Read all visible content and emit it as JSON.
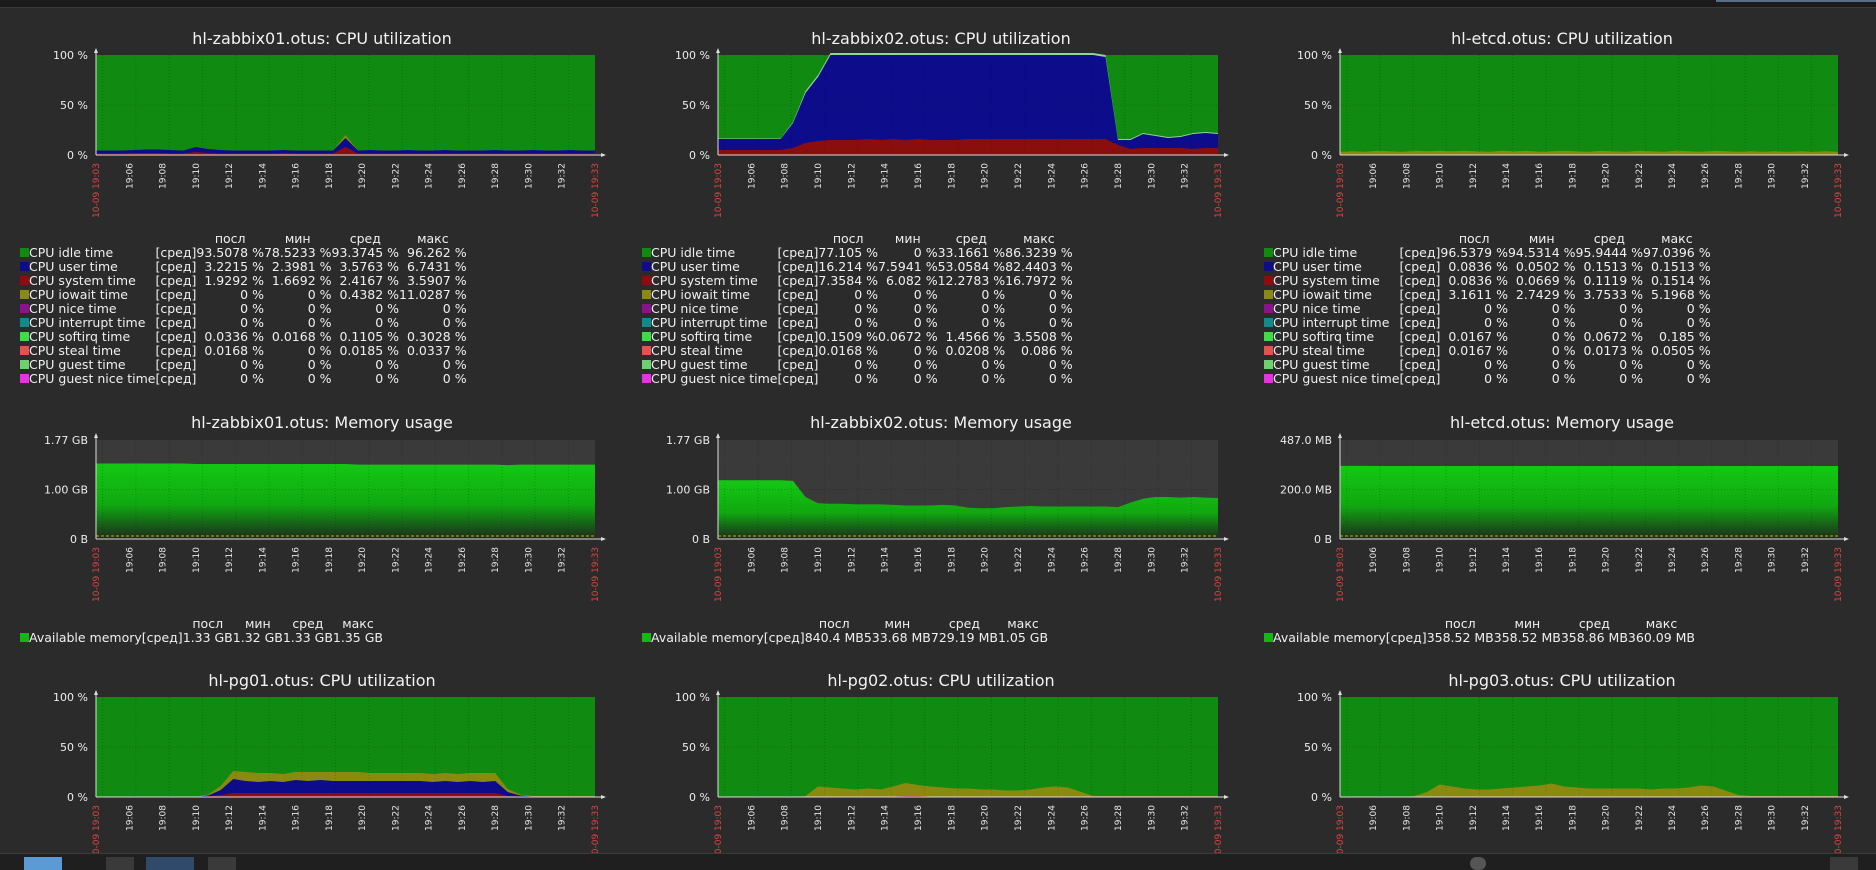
{
  "time_axis": {
    "start": "10-09 19:03",
    "end": "10-09 19:33",
    "ticks": [
      "19:06",
      "19:08",
      "19:10",
      "19:12",
      "19:14",
      "19:16",
      "19:18",
      "19:20",
      "19:22",
      "19:24",
      "19:26",
      "19:28",
      "19:30",
      "19:32"
    ]
  },
  "legend_headers": {
    "last": "посл",
    "min": "мин",
    "avg": "сред",
    "max": "макс"
  },
  "func_label": "[сред]",
  "cpu_series": [
    {
      "name": "CPU idle time",
      "color": "#118a11"
    },
    {
      "name": "CPU user time",
      "color": "#0d0d8c"
    },
    {
      "name": "CPU system time",
      "color": "#8b0e0e"
    },
    {
      "name": "CPU iowait time",
      "color": "#8a8a10"
    },
    {
      "name": "CPU nice time",
      "color": "#8a128a"
    },
    {
      "name": "CPU interrupt time",
      "color": "#128a8a"
    },
    {
      "name": "CPU softirq time",
      "color": "#45d945"
    },
    {
      "name": "CPU steal time",
      "color": "#e84f4f"
    },
    {
      "name": "CPU guest time",
      "color": "#6fd06f"
    },
    {
      "name": "CPU guest nice time",
      "color": "#e832e0"
    }
  ],
  "mem_series": {
    "name": "Available memory",
    "color": "#11b911"
  },
  "widgets": [
    {
      "title": "hl-zabbix01.otus: CPU utilization",
      "chart_data": {
        "type": "area",
        "y_ticks": [
          "100 %",
          "50 %",
          "0 %"
        ],
        "ylim": [
          0,
          100
        ],
        "series": {
          "system": [
            1.5,
            1.5,
            1.5,
            2,
            2,
            2,
            1.5,
            1.5,
            3,
            2,
            1.5,
            1.5,
            1.5,
            1.5,
            1.5,
            2,
            1.5,
            1.5,
            1.5,
            1.5,
            8,
            1.5,
            1.5,
            1.5,
            1.5,
            1.5,
            1.5,
            1.5,
            1.5,
            1.5,
            1.5,
            1.5,
            1.5,
            1.5,
            1.5,
            1.5,
            1.5,
            1.5,
            1.5,
            1.5,
            1.5
          ],
          "user": [
            3,
            3,
            3,
            3,
            3.5,
            3.5,
            3.5,
            3,
            5,
            4,
            3.5,
            3,
            3,
            3,
            3,
            3,
            3,
            3,
            3,
            3,
            9,
            3,
            3.5,
            3,
            3,
            3.5,
            3,
            3,
            3.5,
            3,
            3,
            3,
            3.5,
            3,
            3,
            3.5,
            3,
            3,
            3.5,
            3,
            3
          ],
          "iowait": [
            0,
            0,
            0,
            0,
            0,
            0,
            0,
            0,
            0,
            0,
            0,
            0,
            0,
            0,
            0,
            0,
            0,
            0,
            0,
            0,
            3,
            0,
            0,
            0,
            0,
            0,
            0,
            0,
            0,
            0,
            0,
            0,
            0,
            0,
            0,
            0,
            0,
            0,
            0,
            0,
            0
          ]
        }
      },
      "legend": [
        [
          "93.5078 %",
          "78.5233 %",
          "93.3745 %",
          "96.262 %"
        ],
        [
          "3.2215 %",
          "2.3981 %",
          "3.5763 %",
          "6.7431 %"
        ],
        [
          "1.9292 %",
          "1.6692 %",
          "2.4167 %",
          "3.5907 %"
        ],
        [
          "0 %",
          "0 %",
          "0.4382 %",
          "11.0287 %"
        ],
        [
          "0 %",
          "0 %",
          "0 %",
          "0 %"
        ],
        [
          "0 %",
          "0 %",
          "0 %",
          "0 %"
        ],
        [
          "0.0336 %",
          "0.0168 %",
          "0.1105 %",
          "0.3028 %"
        ],
        [
          "0.0168 %",
          "0 %",
          "0.0185 %",
          "0.0337 %"
        ],
        [
          "0 %",
          "0 %",
          "0 %",
          "0 %"
        ],
        [
          "0 %",
          "0 %",
          "0 %",
          "0 %"
        ]
      ]
    },
    {
      "title": "hl-zabbix02.otus: CPU utilization",
      "chart_data": {
        "type": "area",
        "y_ticks": [
          "100 %",
          "50 %",
          "0 %"
        ],
        "ylim": [
          0,
          100
        ],
        "series": {
          "system": [
            5,
            5,
            5,
            5,
            5,
            5,
            7,
            12,
            14,
            15,
            15,
            15,
            16,
            15,
            16,
            15,
            16,
            15,
            15,
            15,
            16,
            16,
            16,
            16,
            16,
            16,
            16,
            16,
            16,
            16,
            16,
            16,
            10,
            6,
            7,
            7,
            7,
            7,
            6,
            7,
            7
          ],
          "user": [
            11,
            11,
            11,
            11,
            11,
            11,
            25,
            50,
            64,
            85,
            85,
            85,
            84,
            85,
            84,
            85,
            84,
            85,
            85,
            85,
            84,
            84,
            84,
            84,
            84,
            84,
            84,
            84,
            84,
            84,
            84,
            82,
            5,
            9,
            14,
            12,
            10,
            11,
            15,
            15,
            14
          ],
          "softirq": [
            0.5,
            0.5,
            0.5,
            0.5,
            0.5,
            0.5,
            1,
            2,
            2,
            2,
            2,
            2,
            2,
            2,
            2,
            2,
            2,
            2,
            2,
            2,
            2,
            2,
            2,
            2,
            2,
            2,
            2,
            2,
            2,
            2,
            2,
            2,
            1,
            1,
            1,
            1,
            1,
            1,
            1,
            1,
            1
          ]
        }
      },
      "legend": [
        [
          "77.105 %",
          "0 %",
          "33.1661 %",
          "86.3239 %"
        ],
        [
          "16.214 %",
          "7.5941 %",
          "53.0584 %",
          "82.4403 %"
        ],
        [
          "7.3584 %",
          "6.082 %",
          "12.2783 %",
          "16.7972 %"
        ],
        [
          "0 %",
          "0 %",
          "0 %",
          "0 %"
        ],
        [
          "0 %",
          "0 %",
          "0 %",
          "0 %"
        ],
        [
          "0 %",
          "0 %",
          "0 %",
          "0 %"
        ],
        [
          "0.1509 %",
          "0.0672 %",
          "1.4566 %",
          "3.5508 %"
        ],
        [
          "0.0168 %",
          "0 %",
          "0.0208 %",
          "0.086 %"
        ],
        [
          "0 %",
          "0 %",
          "0 %",
          "0 %"
        ],
        [
          "0 %",
          "0 %",
          "0 %",
          "0 %"
        ]
      ]
    },
    {
      "title": "hl-etcd.otus: CPU utilization",
      "chart_data": {
        "type": "area",
        "y_ticks": [
          "100 %",
          "50 %",
          "0 %"
        ],
        "ylim": [
          0,
          100
        ],
        "series": {
          "iowait": [
            3,
            3.5,
            3,
            4,
            3.5,
            3,
            4,
            3.5,
            4,
            3.5,
            4,
            3.5,
            3,
            4,
            3.5,
            4,
            3,
            3.5,
            4,
            3.5,
            3,
            4,
            3.5,
            3,
            4,
            3.5,
            3,
            4,
            3.5,
            3,
            4,
            3.5,
            3,
            3.5,
            3,
            3.5,
            3,
            3.5,
            3,
            3.5,
            3
          ],
          "system": [
            0.2,
            0.2,
            0.2,
            0.2,
            0.2,
            0.2,
            0.2,
            0.2,
            0.2,
            0.2,
            0.2,
            0.2,
            0.2,
            0.2,
            0.2,
            0.2,
            0.2,
            0.2,
            0.2,
            0.2,
            0.2,
            0.2,
            0.2,
            0.2,
            0.2,
            0.2,
            0.2,
            0.2,
            0.2,
            0.2,
            0.2,
            0.2,
            0.2,
            0.2,
            0.2,
            0.2,
            0.2,
            0.2,
            0.2,
            0.2,
            0.2
          ]
        }
      },
      "legend": [
        [
          "96.5379 %",
          "94.5314 %",
          "95.9444 %",
          "97.0396 %"
        ],
        [
          "0.0836 %",
          "0.0502 %",
          "0.1513 %",
          "0.1513 %"
        ],
        [
          "0.0836 %",
          "0.0669 %",
          "0.1119 %",
          "0.1514 %"
        ],
        [
          "3.1611 %",
          "2.7429 %",
          "3.7533 %",
          "5.1968 %"
        ],
        [
          "0 %",
          "0 %",
          "0 %",
          "0 %"
        ],
        [
          "0 %",
          "0 %",
          "0 %",
          "0 %"
        ],
        [
          "0.0167 %",
          "0 %",
          "0.0672 %",
          "0.185 %"
        ],
        [
          "0.0167 %",
          "0 %",
          "0.0173 %",
          "0.0505 %"
        ],
        [
          "0 %",
          "0 %",
          "0 %",
          "0 %"
        ],
        [
          "0 %",
          "0 %",
          "0 %",
          "0 %"
        ]
      ]
    },
    {
      "title": "hl-zabbix01.otus: Memory usage",
      "chart_data": {
        "type": "area",
        "unit": "GB",
        "y_ticks": [
          "1.77 GB",
          "1.00 GB",
          "0 B"
        ],
        "ylim": [
          0,
          1.77
        ],
        "values": [
          1.35,
          1.35,
          1.35,
          1.35,
          1.35,
          1.35,
          1.35,
          1.35,
          1.34,
          1.34,
          1.34,
          1.34,
          1.34,
          1.34,
          1.34,
          1.34,
          1.34,
          1.34,
          1.34,
          1.34,
          1.34,
          1.33,
          1.33,
          1.33,
          1.33,
          1.33,
          1.33,
          1.33,
          1.33,
          1.33,
          1.33,
          1.33,
          1.33,
          1.32,
          1.33,
          1.33,
          1.33,
          1.33,
          1.33,
          1.33,
          1.33
        ]
      },
      "legend": [
        "1.33 GB",
        "1.32 GB",
        "1.33 GB",
        "1.35 GB"
      ]
    },
    {
      "title": "hl-zabbix02.otus: Memory usage",
      "chart_data": {
        "type": "area",
        "unit": "GB",
        "y_ticks": [
          "1.77 GB",
          "1.00 GB",
          "0 B"
        ],
        "ylim": [
          0,
          1.77
        ],
        "values": [
          1.05,
          1.05,
          1.05,
          1.05,
          1.05,
          1.05,
          1.04,
          0.75,
          0.64,
          0.63,
          0.63,
          0.62,
          0.62,
          0.62,
          0.61,
          0.6,
          0.6,
          0.6,
          0.61,
          0.6,
          0.56,
          0.55,
          0.55,
          0.57,
          0.58,
          0.59,
          0.58,
          0.58,
          0.58,
          0.58,
          0.58,
          0.58,
          0.57,
          0.65,
          0.72,
          0.75,
          0.75,
          0.74,
          0.75,
          0.74,
          0.73
        ]
      },
      "legend": [
        "840.4 MB",
        "533.68 MB",
        "729.19 MB",
        "1.05 GB"
      ]
    },
    {
      "title": "hl-etcd.otus: Memory usage",
      "chart_data": {
        "type": "area",
        "unit": "MB",
        "y_ticks": [
          "487.0 MB",
          "200.0 MB",
          "0 B"
        ],
        "ylim": [
          0,
          487
        ],
        "values": [
          360,
          360,
          360,
          359,
          359,
          359,
          359,
          359,
          359,
          359,
          359,
          359,
          359,
          359,
          359,
          359,
          359,
          359,
          359,
          359,
          359,
          359,
          359,
          359,
          359,
          359,
          359,
          359,
          359,
          359,
          359,
          359,
          359,
          359,
          359,
          359,
          359,
          359,
          359,
          359,
          359
        ]
      },
      "legend": [
        "358.52 MB",
        "358.52 MB",
        "358.86 MB",
        "360.09 MB"
      ]
    },
    {
      "title": "hl-pg01.otus: CPU utilization",
      "chart_data": {
        "type": "area",
        "y_ticks": [
          "100 %",
          "50 %",
          "0 %"
        ],
        "ylim": [
          0,
          100
        ],
        "series": {
          "iowait": [
            0,
            0,
            0,
            0,
            0,
            0,
            0,
            0,
            0,
            1,
            4,
            8,
            9,
            9,
            8,
            8,
            8,
            9,
            8,
            9,
            9,
            9,
            8,
            8,
            8,
            8,
            8,
            8,
            8,
            8,
            8,
            9,
            8,
            3,
            1,
            0.5,
            0.5,
            0.5,
            0.5,
            0.5,
            0.5
          ],
          "system": [
            0,
            0,
            0,
            0,
            0,
            0,
            0,
            0,
            0,
            0.5,
            2,
            4,
            4,
            4,
            4,
            4,
            4,
            4,
            4,
            4,
            4,
            4,
            4,
            4,
            4,
            4,
            4,
            4,
            4,
            4,
            4,
            4,
            4,
            1,
            0.5,
            0,
            0,
            0,
            0,
            0,
            0
          ],
          "user": [
            0,
            0,
            0,
            0,
            0,
            0,
            0,
            0,
            0,
            1,
            5,
            14,
            12,
            11,
            12,
            11,
            13,
            12,
            13,
            12,
            12,
            12,
            12,
            12,
            12,
            12,
            12,
            11,
            12,
            11,
            12,
            11,
            12,
            4,
            1,
            0.5,
            0.5,
            0.5,
            0.5,
            0.5,
            0.5
          ]
        }
      },
      "legend": []
    },
    {
      "title": "hl-pg02.otus: CPU utilization",
      "chart_data": {
        "type": "area",
        "y_ticks": [
          "100 %",
          "50 %",
          "0 %"
        ],
        "ylim": [
          0,
          100
        ],
        "series": {
          "iowait": [
            0,
            0,
            0,
            0,
            0,
            0,
            0,
            1,
            10,
            9,
            8,
            7,
            8,
            7,
            10,
            13,
            11,
            10,
            9,
            8,
            8,
            7,
            7,
            6,
            6,
            7,
            9,
            10,
            9,
            5,
            1,
            1,
            1,
            1,
            1,
            1,
            1,
            1,
            1,
            1,
            1
          ],
          "system": [
            0,
            0,
            0,
            0,
            0,
            0,
            0,
            0,
            0.5,
            0.5,
            0.5,
            0.5,
            0.5,
            0.5,
            0.5,
            1,
            1,
            0.5,
            0.5,
            0.5,
            0.5,
            0.5,
            0.5,
            0.5,
            0.5,
            0.5,
            0.5,
            0.5,
            0.5,
            0.3,
            0,
            0,
            0,
            0,
            0,
            0,
            0,
            0,
            0,
            0,
            0
          ]
        }
      },
      "legend": []
    },
    {
      "title": "hl-pg03.otus: CPU utilization",
      "chart_data": {
        "type": "area",
        "y_ticks": [
          "100 %",
          "50 %",
          "0 %"
        ],
        "ylim": [
          0,
          100
        ],
        "series": {
          "iowait": [
            0,
            0,
            0,
            0,
            0,
            0,
            1,
            5,
            12,
            10,
            8,
            7,
            7,
            8,
            9,
            10,
            11,
            13,
            10,
            9,
            8,
            8,
            8,
            8,
            8,
            7,
            8,
            8,
            9,
            11,
            10,
            6,
            2,
            1,
            1,
            1,
            1,
            1,
            1,
            1,
            1
          ],
          "system": [
            0,
            0,
            0,
            0,
            0,
            0,
            0,
            0,
            0.5,
            0.5,
            0.5,
            0.5,
            0.5,
            0.5,
            0.5,
            0.5,
            0.5,
            0.5,
            0.5,
            0.5,
            0.5,
            0.5,
            0.5,
            0.5,
            0.5,
            0.5,
            0.5,
            0.5,
            0.5,
            0.5,
            0.5,
            0.3,
            0,
            0,
            0,
            0,
            0,
            0,
            0,
            0,
            0
          ]
        }
      },
      "legend": []
    }
  ]
}
